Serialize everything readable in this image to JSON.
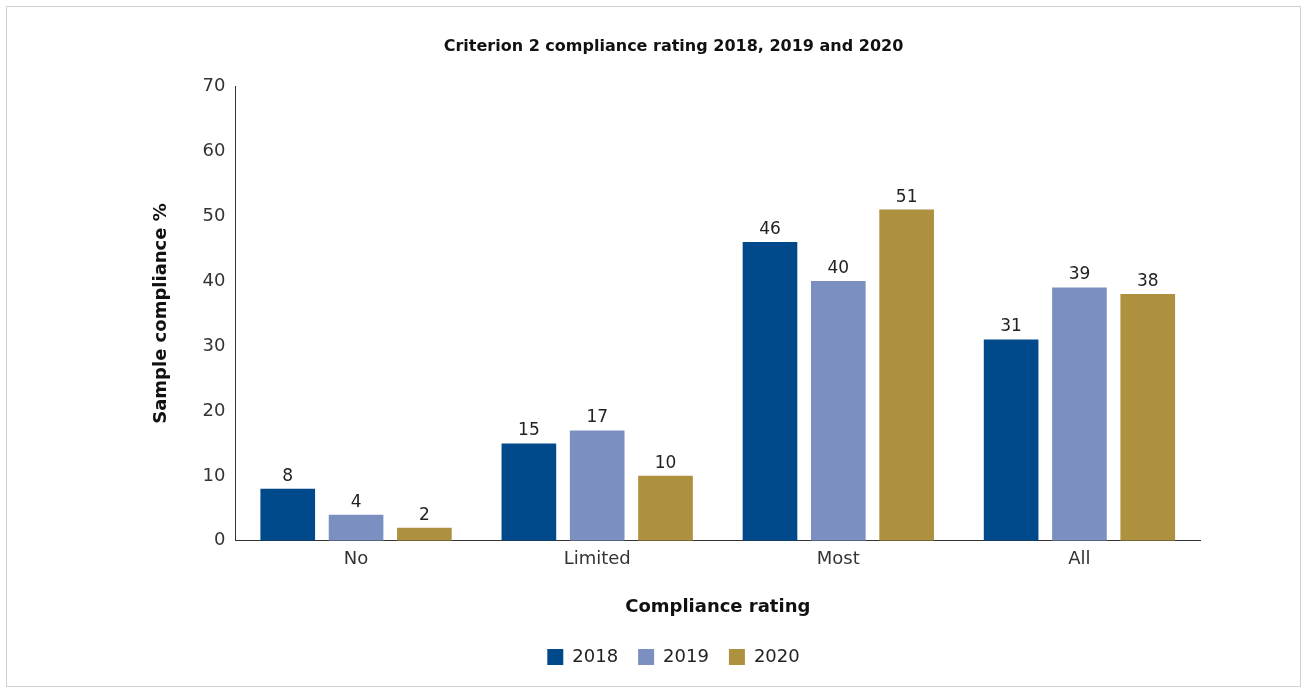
{
  "chart_data": {
    "type": "bar",
    "title": "Criterion 2 compliance rating 2018, 2019 and 2020",
    "xlabel": "Compliance rating",
    "ylabel": "Sample compliance %",
    "categories": [
      "No",
      "Limited",
      "Most",
      "All"
    ],
    "series": [
      {
        "name": "2018",
        "color": "#004a8c",
        "values": [
          8,
          15,
          46,
          31
        ]
      },
      {
        "name": "2019",
        "color": "#7b8fc0",
        "values": [
          4,
          17,
          40,
          39
        ]
      },
      {
        "name": "2020",
        "color": "#ae913e",
        "values": [
          2,
          10,
          51,
          38
        ]
      }
    ],
    "ylim": [
      0,
      70
    ],
    "yticks": [
      0,
      10,
      20,
      30,
      40,
      50,
      60,
      70
    ],
    "grid": false,
    "legend": "bottom",
    "data_labels": true
  }
}
